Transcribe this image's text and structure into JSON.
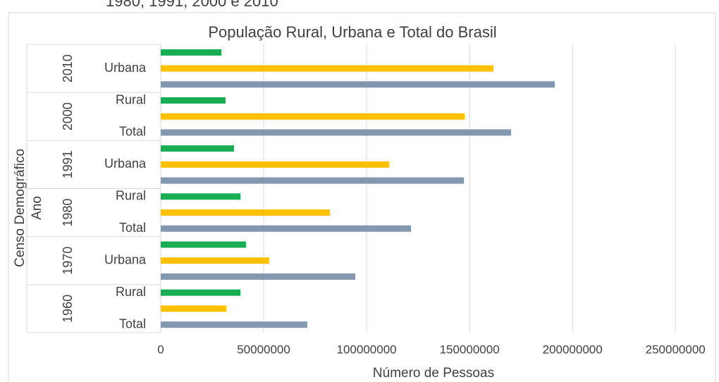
{
  "chart_data": {
    "type": "bar",
    "orientation": "horizontal",
    "header": "1980, 1991, 2000 e 2010",
    "title": "População Rural, Urbana e Total do Brasil",
    "x_label": "Número de Pessoas",
    "y_label": [
      "Censo Demográfico",
      "Ano"
    ],
    "categories": [
      "1960",
      "1970",
      "1980",
      "1991",
      "2000",
      "2010"
    ],
    "subcategories": [
      [
        "Rural",
        null,
        "Total"
      ],
      [
        null,
        "Urbana",
        null
      ],
      [
        "Rural",
        null,
        "Total"
      ],
      [
        null,
        "Urbana",
        null
      ],
      [
        "Rural",
        null,
        "Total"
      ],
      [
        null,
        "Urbana",
        null
      ]
    ],
    "series": [
      {
        "color": "#1aae54",
        "values": [
          38700000,
          41400000,
          38700000,
          35600000,
          31500000,
          29500000
        ]
      },
      {
        "color": "#ffc000",
        "values": [
          31800000,
          52700000,
          82200000,
          111000000,
          147600000,
          161600000
        ]
      },
      {
        "color": "#8497b0",
        "values": [
          71200000,
          94500000,
          121600000,
          147300000,
          170200000,
          191400000
        ]
      }
    ],
    "xlim": [
      0,
      265000000
    ],
    "xticks": [
      0,
      50000000,
      100000000,
      150000000,
      200000000,
      250000000
    ],
    "grid": true
  }
}
